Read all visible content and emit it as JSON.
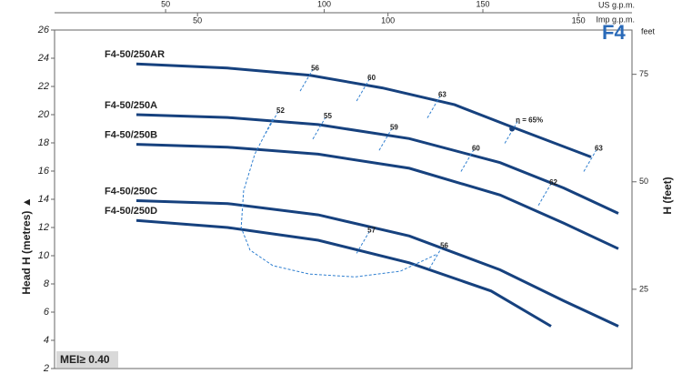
{
  "chart_data": {
    "type": "line",
    "title": "F4",
    "note": "MEI≥ 0.40",
    "y_label": "Head H (metres) ▲",
    "y2_label": "H (feet)",
    "y2_unit": "feet",
    "x_label": "US g.p.m.",
    "x2_label": "Imp g.p.m.",
    "xlim": [
      15,
      197
    ],
    "xticks": [
      50,
      100,
      150
    ],
    "x2lim": [
      12.49,
      164.04
    ],
    "x2ticks": [
      50,
      100,
      150
    ],
    "ylim": [
      2,
      26
    ],
    "yticks": [
      2,
      4,
      6,
      8,
      10,
      12,
      14,
      16,
      18,
      20,
      22,
      24,
      26
    ],
    "y2lim": [
      6.56,
      85.3
    ],
    "y2ticks": [
      25,
      50,
      75
    ],
    "series": [
      {
        "name": "F4-50/250AR",
        "color": "#16417e",
        "x": [
          40.8,
          69.5,
          95.3,
          118.3,
          141.1,
          158.3,
          184.1
        ],
        "values": [
          23.6,
          23.3,
          22.8,
          21.9,
          20.7,
          19.2,
          17.0
        ]
      },
      {
        "name": "F4-50/250A",
        "color": "#16417e",
        "x": [
          40.8,
          69.5,
          98.1,
          126.8,
          155.4,
          175.5,
          192.7
        ],
        "values": [
          20.0,
          19.8,
          19.3,
          18.3,
          16.6,
          14.8,
          13.0
        ]
      },
      {
        "name": "F4-50/250B",
        "color": "#16417e",
        "x": [
          40.8,
          69.5,
          98.1,
          126.8,
          155.4,
          175.5,
          192.7
        ],
        "values": [
          17.9,
          17.7,
          17.2,
          16.2,
          14.3,
          12.3,
          10.5
        ]
      },
      {
        "name": "F4-50/250C",
        "color": "#16417e",
        "x": [
          40.8,
          69.5,
          98.1,
          126.8,
          155.4,
          175.5,
          192.7
        ],
        "values": [
          13.9,
          13.7,
          12.9,
          11.4,
          9.0,
          6.8,
          5.0
        ]
      },
      {
        "name": "F4-50/250D",
        "color": "#16417e",
        "x": [
          40.8,
          69.5,
          98.1,
          126.8,
          152.6,
          171.5
        ],
        "values": [
          12.5,
          12.0,
          11.1,
          9.5,
          7.5,
          5.0
        ]
      }
    ],
    "efficiency_curve": {
      "color": "#2f7fd0",
      "x": [
        83.8,
        78.1,
        74.6,
        73.8,
        76.6,
        83.8,
        95.3,
        109.6,
        124.0,
        135.4
      ],
      "values": [
        19.7,
        17.2,
        14.6,
        12.0,
        10.4,
        9.3,
        8.7,
        8.5,
        8.9,
        10.1
      ]
    },
    "annotations": [
      {
        "text": "56",
        "x": 94.7,
        "y": 22.7
      },
      {
        "text": "60",
        "x": 112.5,
        "y": 22.0
      },
      {
        "text": "63",
        "x": 134.8,
        "y": 20.8
      },
      {
        "text": "η = 65%",
        "x": 159.2,
        "y": 19.0
      },
      {
        "text": "63",
        "x": 184.1,
        "y": 17.0
      },
      {
        "text": "52",
        "x": 83.8,
        "y": 19.7
      },
      {
        "text": "55",
        "x": 98.7,
        "y": 19.3
      },
      {
        "text": "59",
        "x": 119.6,
        "y": 18.5
      },
      {
        "text": "60",
        "x": 145.4,
        "y": 17.0
      },
      {
        "text": "62",
        "x": 169.8,
        "y": 14.6
      },
      {
        "text": "57",
        "x": 112.5,
        "y": 11.2
      },
      {
        "text": "56",
        "x": 135.4,
        "y": 10.1
      }
    ]
  }
}
